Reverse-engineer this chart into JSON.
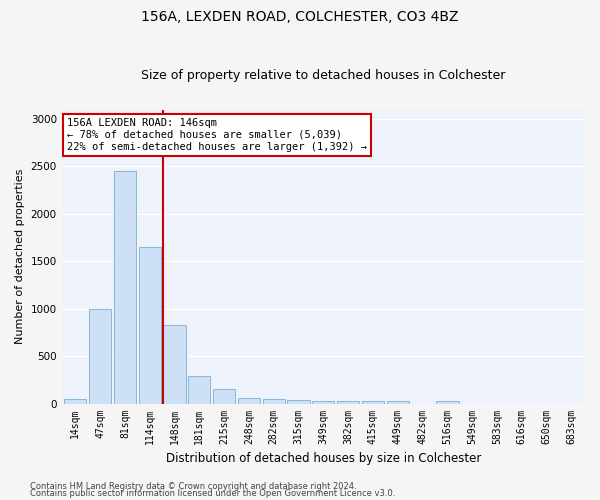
{
  "title": "156A, LEXDEN ROAD, COLCHESTER, CO3 4BZ",
  "subtitle": "Size of property relative to detached houses in Colchester",
  "xlabel": "Distribution of detached houses by size in Colchester",
  "ylabel": "Number of detached properties",
  "categories": [
    "14sqm",
    "47sqm",
    "81sqm",
    "114sqm",
    "148sqm",
    "181sqm",
    "215sqm",
    "248sqm",
    "282sqm",
    "315sqm",
    "349sqm",
    "382sqm",
    "415sqm",
    "449sqm",
    "482sqm",
    "516sqm",
    "549sqm",
    "583sqm",
    "616sqm",
    "650sqm",
    "683sqm"
  ],
  "values": [
    50,
    1000,
    2450,
    1650,
    830,
    295,
    150,
    55,
    45,
    35,
    25,
    25,
    25,
    25,
    0,
    28,
    0,
    0,
    0,
    0,
    0
  ],
  "bar_color": "#cde0f5",
  "bar_edgecolor": "#7bafd4",
  "property_line_index": 4,
  "property_line_color": "#cc0000",
  "annotation_text": "156A LEXDEN ROAD: 146sqm\n← 78% of detached houses are smaller (5,039)\n22% of semi-detached houses are larger (1,392) →",
  "annotation_box_color": "#cc0000",
  "ylim": [
    0,
    3100
  ],
  "yticks": [
    0,
    500,
    1000,
    1500,
    2000,
    2500,
    3000
  ],
  "footer1": "Contains HM Land Registry data © Crown copyright and database right 2024.",
  "footer2": "Contains public sector information licensed under the Open Government Licence v3.0.",
  "bg_color": "#eef2fa",
  "grid_color": "#ffffff",
  "fig_bg": "#f5f5f5",
  "title_fontsize": 10,
  "subtitle_fontsize": 9,
  "tick_fontsize": 7,
  "ylabel_fontsize": 8,
  "xlabel_fontsize": 8.5,
  "footer_fontsize": 6
}
